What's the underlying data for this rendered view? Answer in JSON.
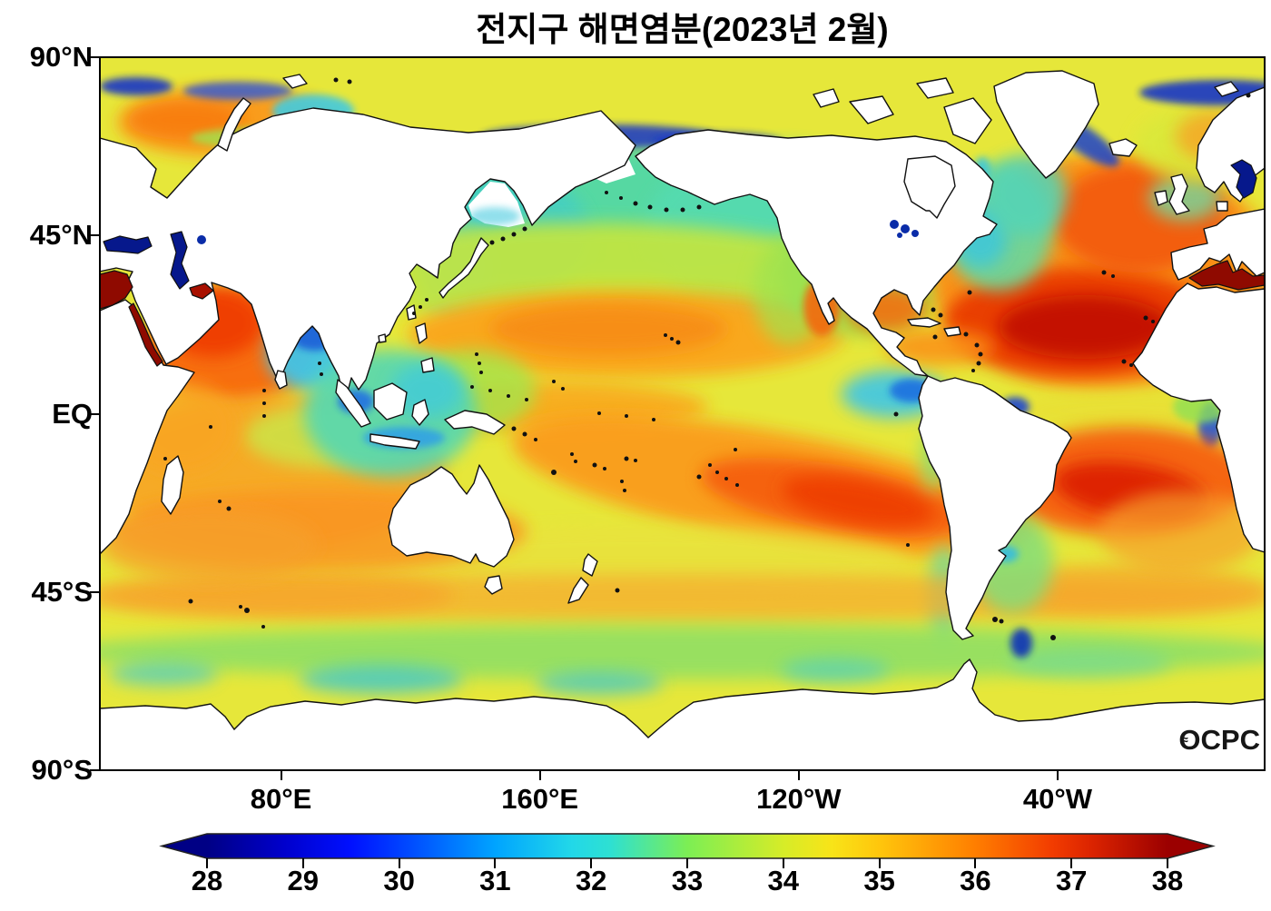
{
  "title": {
    "text": "전지구 해면염분(2023년 2월)"
  },
  "watermark": {
    "text": "OCPC",
    "wave_icon": "≈"
  },
  "map": {
    "lat_labels": [
      {
        "label": "90°N",
        "lat": 90
      },
      {
        "label": "45°N",
        "lat": 45
      },
      {
        "label": "EQ",
        "lat": 0
      },
      {
        "label": "45°S",
        "lat": -45
      },
      {
        "label": "90°S",
        "lat": -90
      }
    ],
    "lon_labels": [
      {
        "label": "80°E",
        "lon": 80
      },
      {
        "label": "160°E",
        "lon": 160
      },
      {
        "label": "120°W",
        "lon": 240
      },
      {
        "label": "40°W",
        "lon": 320
      }
    ]
  },
  "colorbar": {
    "min": 28,
    "max": 38,
    "ticks": [
      28,
      29,
      30,
      31,
      32,
      33,
      34,
      35,
      36,
      37,
      38
    ],
    "palette": [
      "#000085",
      "#0000E0",
      "#0040FF",
      "#00A4FF",
      "#2EE0D2",
      "#7CEE54",
      "#D6EC28",
      "#FFC60C",
      "#FF7E00",
      "#E82E00",
      "#9B0000"
    ]
  },
  "chart_data": {
    "type": "heatmap",
    "title": "전지구 해면염분(2023년 2월)",
    "variable": "sea surface salinity",
    "colorbar_range": [
      28,
      38
    ],
    "colorbar_ticks": [
      28,
      29,
      30,
      31,
      32,
      33,
      34,
      35,
      36,
      37,
      38
    ],
    "x_ticks": [
      "80°E",
      "160°E",
      "120°W",
      "40°W"
    ],
    "y_ticks": [
      "90°N",
      "45°N",
      "EQ",
      "45°S",
      "90°S"
    ],
    "legend_position": "bottom",
    "regions_estimated_psu": [
      {
        "region": "North Atlantic subtropical gyre",
        "value": 37.5
      },
      {
        "region": "South Atlantic subtropical core",
        "value": 37.0
      },
      {
        "region": "Mediterranean Sea",
        "value": 38.0
      },
      {
        "region": "Red Sea",
        "value": 38.0
      },
      {
        "region": "Persian Gulf",
        "value": 38.0
      },
      {
        "region": "Black Sea",
        "value": 28.0
      },
      {
        "region": "Caspian Sea",
        "value": 28.0
      },
      {
        "region": "Baltic Sea",
        "value": 28.0
      },
      {
        "region": "Arabian Sea",
        "value": 36.5
      },
      {
        "region": "Bay of Bengal",
        "value": 31.5
      },
      {
        "region": "North Pacific subpolar",
        "value": 32.5
      },
      {
        "region": "North Pacific subtropical band",
        "value": 35.5
      },
      {
        "region": "South Pacific subtropical core",
        "value": 36.5
      },
      {
        "region": "Eastern equatorial Pacific fresh pool",
        "value": 31.0
      },
      {
        "region": "Amazon river plume",
        "value": 29.0
      },
      {
        "region": "Maritime continent seas",
        "value": 32.5
      },
      {
        "region": "South Indian subtropical band",
        "value": 35.5
      },
      {
        "region": "Southern Ocean 45S band",
        "value": 34.5
      },
      {
        "region": "Southern Ocean subpolar band",
        "value": 33.5
      },
      {
        "region": "Barents Sea",
        "value": 35.0
      }
    ]
  }
}
